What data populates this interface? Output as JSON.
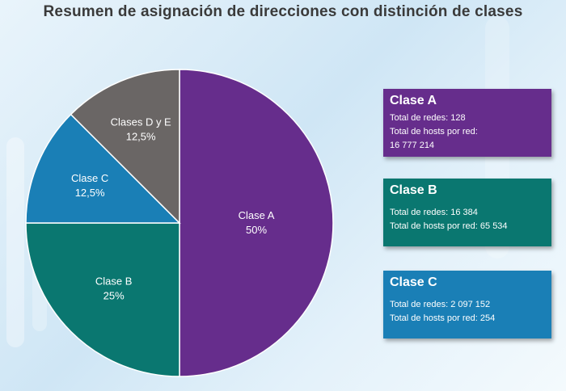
{
  "title": "Resumen de asignación de direcciones con distinción de clases",
  "chart_data": {
    "type": "pie",
    "slices": [
      {
        "name": "Clase A",
        "value": 50,
        "label": "50%",
        "color": "#662d8c"
      },
      {
        "name": "Clase B",
        "value": 25,
        "label": "25%",
        "color": "#0a7770"
      },
      {
        "name": "Clase C",
        "value": 12.5,
        "label": "12,5%",
        "color": "#1a7fb6"
      },
      {
        "name": "Clases D y E",
        "value": 12.5,
        "label": "12,5%",
        "color": "#6a6665"
      }
    ]
  },
  "info_boxes": [
    {
      "title": "Clase A",
      "color": "#662d8c",
      "lines": [
        "Total de redes: 128",
        "Total de hosts por red:",
        "16 777 214"
      ]
    },
    {
      "title": "Clase B",
      "color": "#0a7770",
      "lines": [
        "Total de redes: 16 384",
        "Total de hosts por red: 65 534"
      ]
    },
    {
      "title": "Clase C",
      "color": "#1a7fb6",
      "lines": [
        "Total de redes: 2 097 152",
        "Total de hosts por red: 254"
      ]
    }
  ]
}
